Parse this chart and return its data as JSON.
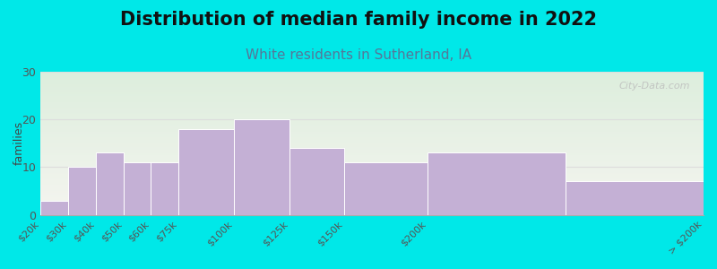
{
  "title": "Distribution of median family income in 2022",
  "subtitle": "White residents in Sutherland, IA",
  "bar_lefts": [
    0,
    1,
    2,
    3,
    4,
    5,
    7,
    9,
    11,
    14,
    19
  ],
  "bar_widths": [
    1,
    1,
    1,
    1,
    1,
    2,
    2,
    2,
    3,
    5,
    5
  ],
  "values": [
    3,
    10,
    13,
    11,
    11,
    18,
    20,
    14,
    11,
    13,
    7
  ],
  "tick_positions": [
    0,
    1,
    2,
    3,
    4,
    5,
    7,
    9,
    11,
    14,
    19,
    24
  ],
  "tick_labels": [
    "$20k",
    "$30k",
    "$40k",
    "$50k",
    "$60k",
    "$75k",
    "$100k",
    "$125k",
    "$150k",
    "$200k",
    "",
    "> $200k"
  ],
  "bar_color": "#c4b0d5",
  "bar_edge_color": "#ffffff",
  "ylabel": "families",
  "ylim": [
    0,
    30
  ],
  "yticks": [
    0,
    10,
    20,
    30
  ],
  "xlim": [
    0,
    24
  ],
  "background_color": "#00e8e8",
  "plot_bg_top_color": "#ddeedd",
  "plot_bg_bottom_color": "#f5f5f0",
  "title_fontsize": 15,
  "subtitle_fontsize": 11,
  "subtitle_color": "#557799",
  "watermark": "City-Data.com",
  "grid_color": "#dddddd"
}
